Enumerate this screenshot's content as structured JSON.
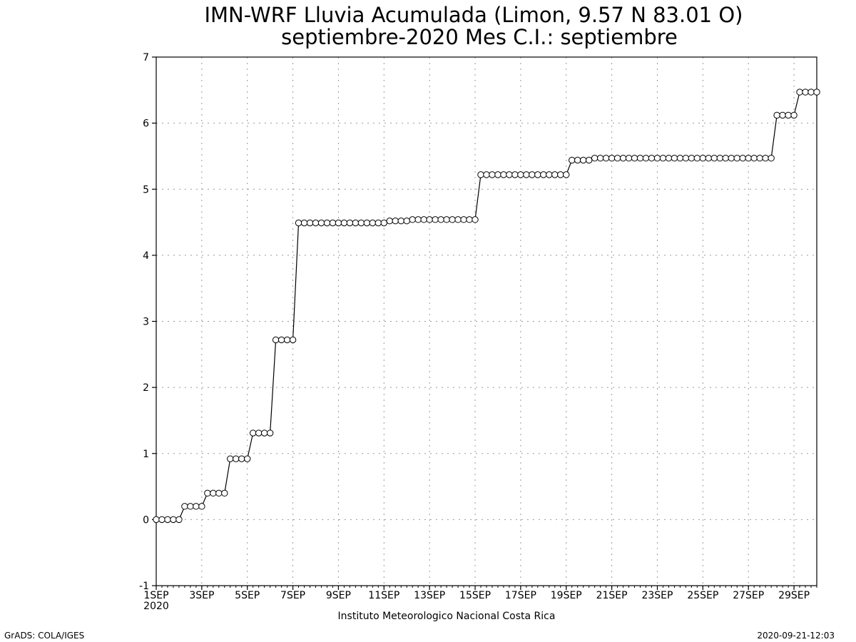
{
  "chart_data": {
    "type": "line",
    "title": "IMN-WRF  Lluvia Acumulada (Limon, 9.57  N 83.01  O)",
    "subtitle": "septiembre-2020 Mes C.I.: septiembre",
    "xlabel": "",
    "ylabel": "",
    "ylim": [
      -1,
      7
    ],
    "yticks": [
      "-1",
      "0",
      "1",
      "2",
      "3",
      "4",
      "5",
      "6",
      "7"
    ],
    "xlim": [
      "2020-09-01T00",
      "2020-09-30T00"
    ],
    "xticks": [
      {
        "date": "2020-09-01",
        "label": "1SEP",
        "sublabel": "2020"
      },
      {
        "date": "2020-09-03",
        "label": "3SEP"
      },
      {
        "date": "2020-09-05",
        "label": "5SEP"
      },
      {
        "date": "2020-09-07",
        "label": "7SEP"
      },
      {
        "date": "2020-09-09",
        "label": "9SEP"
      },
      {
        "date": "2020-09-11",
        "label": "11SEP"
      },
      {
        "date": "2020-09-13",
        "label": "13SEP"
      },
      {
        "date": "2020-09-15",
        "label": "15SEP"
      },
      {
        "date": "2020-09-17",
        "label": "17SEP"
      },
      {
        "date": "2020-09-19",
        "label": "19SEP"
      },
      {
        "date": "2020-09-21",
        "label": "21SEP"
      },
      {
        "date": "2020-09-23",
        "label": "23SEP"
      },
      {
        "date": "2020-09-25",
        "label": "25SEP"
      },
      {
        "date": "2020-09-27",
        "label": "27SEP"
      },
      {
        "date": "2020-09-29",
        "label": "29SEP"
      }
    ],
    "grid": true,
    "colors": {
      "line": "#000000",
      "marker_fill": "#ffffff",
      "grid": "#999999"
    },
    "series": [
      {
        "x": [
          "2020-09-01T00",
          "2020-09-01T06",
          "2020-09-01T12",
          "2020-09-01T18",
          "2020-09-02T00",
          "2020-09-02T06",
          "2020-09-02T12",
          "2020-09-02T18",
          "2020-09-03T00",
          "2020-09-03T06",
          "2020-09-03T12",
          "2020-09-03T18",
          "2020-09-04T00",
          "2020-09-04T06",
          "2020-09-04T12",
          "2020-09-04T18",
          "2020-09-05T00",
          "2020-09-05T06",
          "2020-09-05T12",
          "2020-09-05T18",
          "2020-09-06T00",
          "2020-09-06T06",
          "2020-09-06T12",
          "2020-09-06T18",
          "2020-09-07T00",
          "2020-09-07T06",
          "2020-09-07T12",
          "2020-09-07T18",
          "2020-09-08T00",
          "2020-09-08T06",
          "2020-09-08T12",
          "2020-09-08T18",
          "2020-09-09T00",
          "2020-09-09T06",
          "2020-09-09T12",
          "2020-09-09T18",
          "2020-09-10T00",
          "2020-09-10T06",
          "2020-09-10T12",
          "2020-09-10T18",
          "2020-09-11T00",
          "2020-09-11T06",
          "2020-09-11T12",
          "2020-09-11T18",
          "2020-09-12T00",
          "2020-09-12T06",
          "2020-09-12T12",
          "2020-09-12T18",
          "2020-09-13T00",
          "2020-09-13T06",
          "2020-09-13T12",
          "2020-09-13T18",
          "2020-09-14T00",
          "2020-09-14T06",
          "2020-09-14T12",
          "2020-09-14T18",
          "2020-09-15T00",
          "2020-09-15T06",
          "2020-09-15T12",
          "2020-09-15T18",
          "2020-09-16T00",
          "2020-09-16T06",
          "2020-09-16T12",
          "2020-09-16T18",
          "2020-09-17T00",
          "2020-09-17T06",
          "2020-09-17T12",
          "2020-09-17T18",
          "2020-09-18T00",
          "2020-09-18T06",
          "2020-09-18T12",
          "2020-09-18T18",
          "2020-09-19T00",
          "2020-09-19T06",
          "2020-09-19T12",
          "2020-09-19T18",
          "2020-09-20T00",
          "2020-09-20T06",
          "2020-09-20T12",
          "2020-09-20T18",
          "2020-09-21T00",
          "2020-09-21T06",
          "2020-09-21T12",
          "2020-09-21T18",
          "2020-09-22T00",
          "2020-09-22T06",
          "2020-09-22T12",
          "2020-09-22T18",
          "2020-09-23T00",
          "2020-09-23T06",
          "2020-09-23T12",
          "2020-09-23T18",
          "2020-09-24T00",
          "2020-09-24T06",
          "2020-09-24T12",
          "2020-09-24T18",
          "2020-09-25T00",
          "2020-09-25T06",
          "2020-09-25T12",
          "2020-09-25T18",
          "2020-09-26T00",
          "2020-09-26T06",
          "2020-09-26T12",
          "2020-09-26T18",
          "2020-09-27T00",
          "2020-09-27T06",
          "2020-09-27T12",
          "2020-09-27T18",
          "2020-09-28T00",
          "2020-09-28T06",
          "2020-09-28T12",
          "2020-09-28T18",
          "2020-09-29T00",
          "2020-09-29T06",
          "2020-09-29T12",
          "2020-09-29T18",
          "2020-09-30T00"
        ],
        "values": [
          0,
          0,
          0,
          0,
          0,
          0.2,
          0.2,
          0.2,
          0.2,
          0.4,
          0.4,
          0.4,
          0.4,
          0.92,
          0.92,
          0.92,
          0.92,
          1.31,
          1.31,
          1.31,
          1.31,
          2.72,
          2.72,
          2.72,
          2.72,
          4.49,
          4.49,
          4.49,
          4.49,
          4.49,
          4.49,
          4.49,
          4.49,
          4.49,
          4.49,
          4.49,
          4.49,
          4.49,
          4.49,
          4.49,
          4.49,
          4.52,
          4.52,
          4.52,
          4.52,
          4.54,
          4.54,
          4.54,
          4.54,
          4.54,
          4.54,
          4.54,
          4.54,
          4.54,
          4.54,
          4.54,
          4.54,
          5.22,
          5.22,
          5.22,
          5.22,
          5.22,
          5.22,
          5.22,
          5.22,
          5.22,
          5.22,
          5.22,
          5.22,
          5.22,
          5.22,
          5.22,
          5.22,
          5.44,
          5.44,
          5.44,
          5.44,
          5.47,
          5.47,
          5.47,
          5.47,
          5.47,
          5.47,
          5.47,
          5.47,
          5.47,
          5.47,
          5.47,
          5.47,
          5.47,
          5.47,
          5.47,
          5.47,
          5.47,
          5.47,
          5.47,
          5.47,
          5.47,
          5.47,
          5.47,
          5.47,
          5.47,
          5.47,
          5.47,
          5.47,
          5.47,
          5.47,
          5.47,
          5.47,
          6.12,
          6.12,
          6.12,
          6.12,
          6.47,
          6.47,
          6.47,
          6.47
        ]
      }
    ]
  },
  "footer": {
    "institution": "Instituto Meteorologico Nacional Costa Rica",
    "software": "GrADS: COLA/IGES",
    "timestamp": "2020-09-21-12:03"
  }
}
